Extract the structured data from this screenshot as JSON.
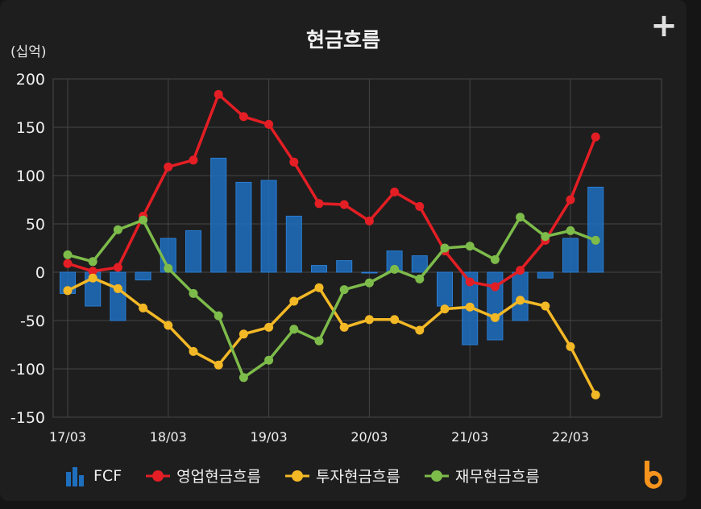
{
  "header": {
    "title": "현금흐름",
    "unit": "(십억)",
    "add_icon": "plus-icon"
  },
  "legend": [
    {
      "label": "FCF",
      "color": "#1f6fbf",
      "icon": "bar-chart-icon"
    },
    {
      "label": "영업현금흐름",
      "color": "#e31e24",
      "icon": "line-dot-icon"
    },
    {
      "label": "투자현금흐름",
      "color": "#f3b826",
      "icon": "line-dot-icon"
    },
    {
      "label": "재무현금흐름",
      "color": "#7dbb4a",
      "icon": "line-dot-icon"
    }
  ],
  "chart_data": {
    "type": "bar",
    "title": "현금흐름",
    "ylabel": "(십억)",
    "ylim": [
      -150,
      200
    ],
    "yticks": [
      200,
      150,
      100,
      50,
      0,
      -50,
      -100,
      -150
    ],
    "xlabels": [
      "17/03",
      "18/03",
      "19/03",
      "20/03",
      "21/03",
      "22/03"
    ],
    "categories": [
      "17/03",
      "17/06",
      "17/09",
      "17/12",
      "18/03",
      "18/06",
      "18/09",
      "18/12",
      "19/03",
      "19/06",
      "19/09",
      "19/12",
      "20/03",
      "20/06",
      "20/09",
      "20/12",
      "21/03",
      "21/06",
      "21/09",
      "21/12",
      "22/03",
      "22/06"
    ],
    "series": [
      {
        "name": "FCF",
        "type": "bar",
        "color": "#1f6fbf",
        "values": [
          -22,
          -35,
          -50,
          -8,
          35,
          43,
          118,
          93,
          95,
          58,
          7,
          12,
          0,
          22,
          17,
          -35,
          -75,
          -70,
          -50,
          -6,
          35,
          88
        ]
      },
      {
        "name": "영업현금흐름",
        "type": "line",
        "color": "#e31e24",
        "values": [
          9,
          1,
          5,
          58,
          109,
          116,
          184,
          161,
          153,
          114,
          71,
          70,
          53,
          83,
          68,
          22,
          -10,
          -15,
          2,
          33,
          75,
          140
        ]
      },
      {
        "name": "투자현금흐름",
        "type": "line",
        "color": "#f3b826",
        "values": [
          -19,
          -6,
          -17,
          -37,
          -55,
          -82,
          -96,
          -64,
          -57,
          -30,
          -16,
          -57,
          -49,
          -49,
          -60,
          -38,
          -36,
          -47,
          -29,
          -35,
          -77,
          -127
        ]
      },
      {
        "name": "재무현금흐름",
        "type": "line",
        "color": "#7dbb4a",
        "values": [
          18,
          11,
          44,
          54,
          4,
          -22,
          -45,
          -109,
          -91,
          -59,
          -71,
          -18,
          -11,
          3,
          -7,
          25,
          27,
          13,
          57,
          37,
          43,
          33
        ]
      }
    ]
  }
}
